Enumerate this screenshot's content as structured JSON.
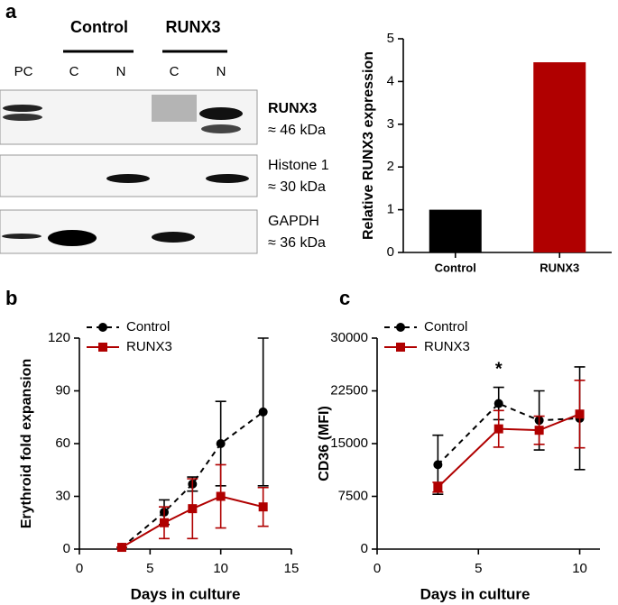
{
  "panel_labels": [
    "a",
    "b",
    "c"
  ],
  "blot": {
    "groups": [
      "Control",
      "RUNX3"
    ],
    "lanes": [
      "PC",
      "C",
      "N",
      "C",
      "N"
    ],
    "rows": [
      {
        "protein": "RUNX3",
        "size": "≈ 46 kDa"
      },
      {
        "protein": "Histone 1",
        "size": "≈ 30 kDa"
      },
      {
        "protein": "GAPDH",
        "size": "≈ 36 kDa"
      }
    ]
  },
  "chart_data": [
    {
      "type": "bar",
      "ylabel": "Relative RUNX3 expression",
      "categories": [
        "Control",
        "RUNX3"
      ],
      "values": [
        1,
        4.45
      ],
      "colors": [
        "#000000",
        "#b00000"
      ],
      "ylim": [
        0,
        5
      ],
      "yticks": [
        0,
        1,
        2,
        3,
        4,
        5
      ]
    },
    {
      "type": "line",
      "xlabel": "Days in culture",
      "ylabel": "Erythroid fold expansion",
      "xlim": [
        0,
        15
      ],
      "xticks": [
        0,
        5,
        10,
        15
      ],
      "ylim": [
        0,
        120
      ],
      "yticks": [
        0,
        30,
        60,
        90,
        120
      ],
      "series": [
        {
          "name": "Control",
          "color": "#000000",
          "linestyle": "dashed",
          "marker": "circle",
          "x": [
            3,
            6,
            8,
            10,
            13
          ],
          "values": [
            1,
            21,
            37,
            60,
            78
          ],
          "errors": [
            0,
            7,
            4,
            24,
            42
          ]
        },
        {
          "name": "RUNX3",
          "color": "#b00000",
          "linestyle": "solid",
          "marker": "square",
          "x": [
            3,
            6,
            8,
            10,
            13
          ],
          "values": [
            1,
            15,
            23,
            30,
            24
          ],
          "errors": [
            0,
            9,
            17,
            18,
            11
          ]
        }
      ]
    },
    {
      "type": "line",
      "xlabel": "Days in culture",
      "ylabel": "CD36 (MFI)",
      "xlim": [
        0,
        11
      ],
      "xticks": [
        0,
        5,
        10
      ],
      "ylim": [
        0,
        30000
      ],
      "yticks": [
        0,
        7500,
        15000,
        22500,
        30000
      ],
      "annotations": [
        {
          "text": "*",
          "x": 6,
          "y": 25500
        }
      ],
      "series": [
        {
          "name": "Control",
          "color": "#000000",
          "linestyle": "dashed",
          "marker": "circle",
          "x": [
            3,
            6,
            8,
            10
          ],
          "values": [
            12000,
            20700,
            18300,
            18600
          ],
          "errors": [
            4200,
            2300,
            4200,
            7300
          ]
        },
        {
          "name": "RUNX3",
          "color": "#b00000",
          "linestyle": "solid",
          "marker": "square",
          "x": [
            3,
            6,
            8,
            10
          ],
          "values": [
            8800,
            17100,
            16900,
            19200
          ],
          "errors": [
            700,
            2600,
            2000,
            4800
          ]
        }
      ]
    }
  ]
}
